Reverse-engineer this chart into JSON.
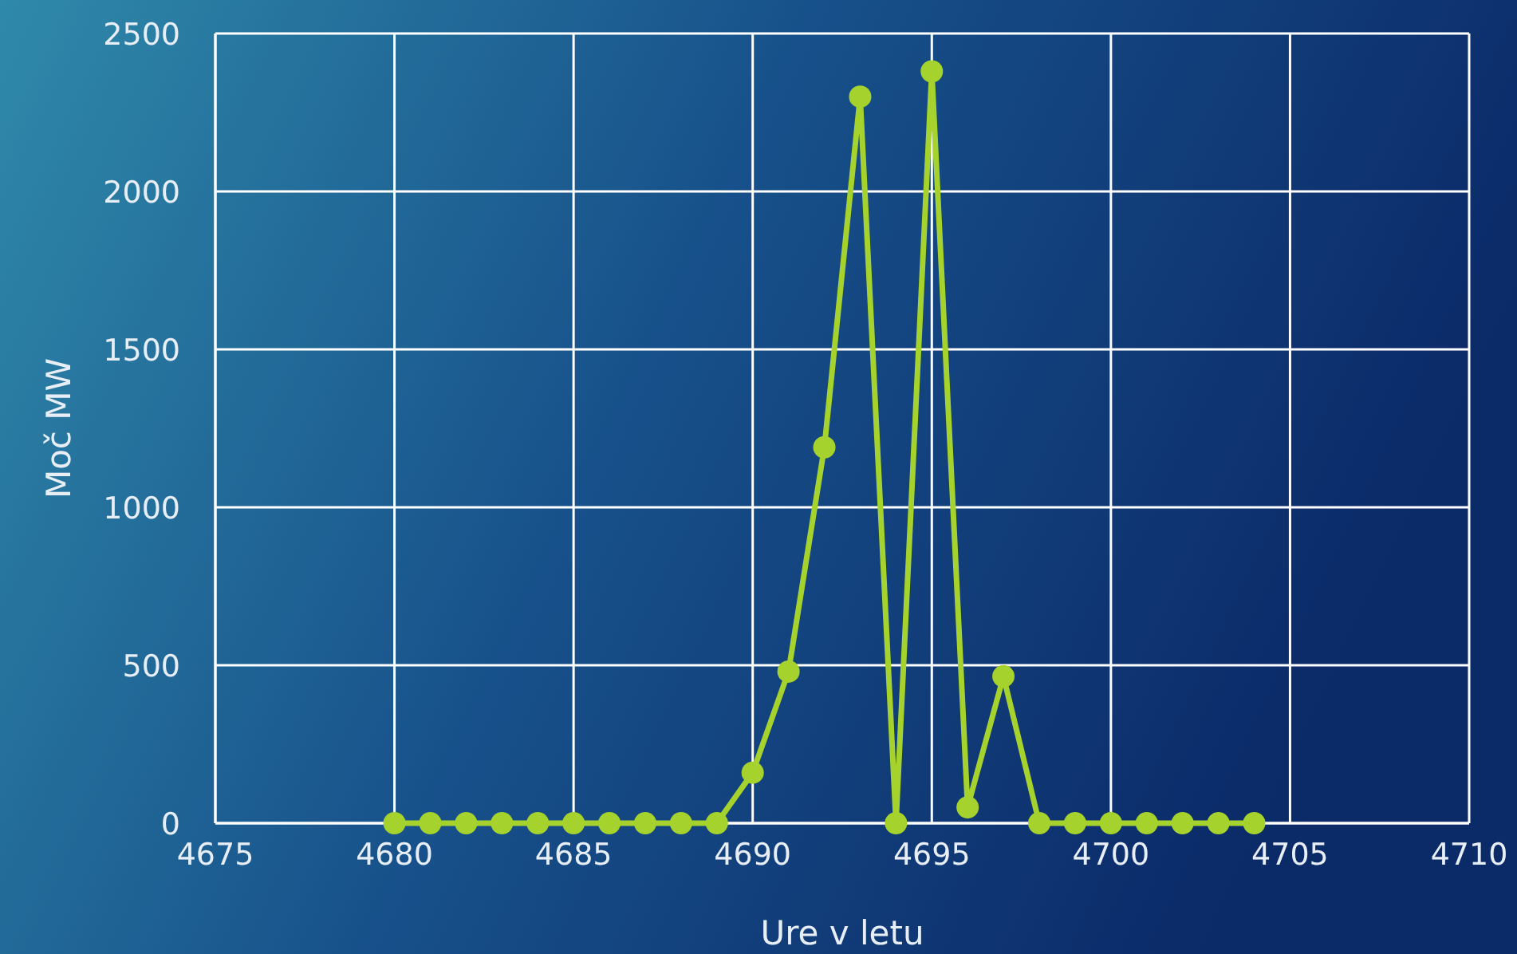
{
  "chart_data": {
    "type": "line",
    "xlabel": "Ure v letu",
    "ylabel": "Moč MW",
    "x": [
      4680,
      4681,
      4682,
      4683,
      4684,
      4685,
      4686,
      4687,
      4688,
      4689,
      4690,
      4691,
      4692,
      4693,
      4694,
      4695,
      4696,
      4697,
      4698,
      4699,
      4700,
      4701,
      4702,
      4703,
      4704
    ],
    "series": [
      {
        "color": "#a6d22e",
        "values": [
          0,
          0,
          0,
          0,
          0,
          0,
          0,
          0,
          0,
          0,
          160,
          480,
          1190,
          2300,
          0,
          2380,
          50,
          465,
          0,
          0,
          0,
          0,
          0,
          0,
          0
        ]
      }
    ],
    "xlim": [
      4675,
      4710
    ],
    "xticks": [
      4675,
      4680,
      4685,
      4690,
      4695,
      4700,
      4705,
      4710
    ],
    "ylim": [
      0,
      2500
    ],
    "yticks": [
      0,
      500,
      1000,
      1500,
      2000,
      2500
    ],
    "grid": true,
    "marker": "circle",
    "line_style": "solid"
  }
}
